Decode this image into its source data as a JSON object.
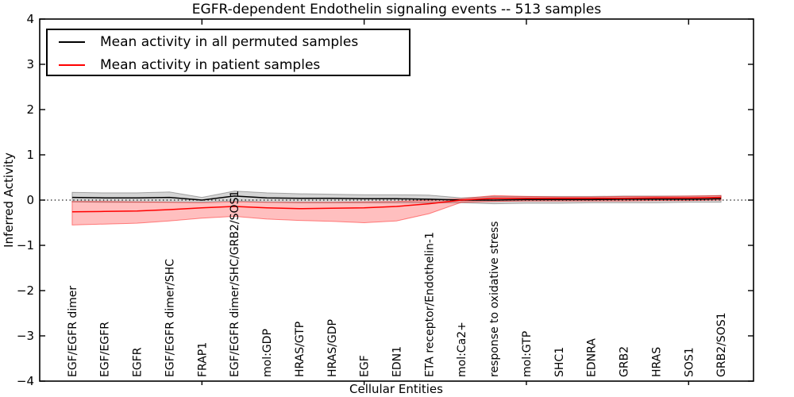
{
  "chart_data": {
    "type": "line",
    "title": "EGFR-dependent Endothelin signaling events -- 513 samples",
    "xlabel": "Cellular Entities",
    "ylabel": "Inferred Activity",
    "xlim": [
      -1,
      21
    ],
    "ylim": [
      -4,
      4
    ],
    "grid": false,
    "legend_position": "upper left",
    "zero_line": {
      "value": 0,
      "style": "dotted",
      "color": "#000000"
    },
    "ytick_values": [
      -4,
      -3,
      -2,
      -1,
      0,
      1,
      2,
      3,
      4
    ],
    "ytick_labels": [
      "−4",
      "−3",
      "−2",
      "−1",
      "0",
      "1",
      "2",
      "3",
      "4"
    ],
    "xtick_unlabeled_positions": [
      4,
      9,
      14,
      19
    ],
    "categories": [
      "EGF/EGFR dimer",
      "EGF/EGFR",
      "EGFR",
      "EGF/EGFR dimer/SHC",
      "FRAP1",
      "EGF/EGFR dimer/SHC/GRB2/SOS1",
      "mol:GDP",
      "HRAS/GTP",
      "HRAS/GDP",
      "EGF",
      "EDN1",
      "ETA receptor/Endothelin-1",
      "mol:Ca2+",
      "response to oxidative stress",
      "mol:GTP",
      "SHC1",
      "EDNRA",
      "GRB2",
      "HRAS",
      "SOS1",
      "GRB2/SOS1"
    ],
    "series": [
      {
        "name": "Mean activity in all permuted samples",
        "color": "#000000",
        "band_color": "rgba(0,0,0,0.17)",
        "band_edge_color": "rgba(0,0,0,0.30)",
        "values": [
          0.06,
          0.05,
          0.05,
          0.06,
          0.0,
          0.09,
          0.05,
          0.04,
          0.04,
          0.03,
          0.03,
          0.02,
          0.0,
          0.0,
          0.01,
          0.01,
          0.01,
          0.02,
          0.02,
          0.02,
          0.03
        ],
        "band_upper": [
          0.17,
          0.16,
          0.16,
          0.18,
          0.06,
          0.2,
          0.16,
          0.14,
          0.13,
          0.12,
          0.12,
          0.11,
          0.05,
          0.08,
          0.08,
          0.08,
          0.08,
          0.09,
          0.09,
          0.09,
          0.1
        ],
        "band_lower": [
          -0.04,
          -0.05,
          -0.05,
          -0.05,
          -0.05,
          -0.02,
          -0.05,
          -0.06,
          -0.06,
          -0.06,
          -0.06,
          -0.06,
          -0.06,
          -0.08,
          -0.07,
          -0.07,
          -0.06,
          -0.06,
          -0.06,
          -0.05,
          -0.05
        ]
      },
      {
        "name": "Mean activity in patient samples",
        "color": "#ff0000",
        "band_color": "rgba(255,0,0,0.25)",
        "band_edge_color": "rgba(255,0,0,0.45)",
        "values": [
          -0.26,
          -0.25,
          -0.24,
          -0.21,
          -0.17,
          -0.14,
          -0.17,
          -0.19,
          -0.18,
          -0.17,
          -0.14,
          -0.08,
          0.0,
          0.04,
          0.04,
          0.04,
          0.04,
          0.04,
          0.05,
          0.05,
          0.06
        ],
        "band_upper": [
          -0.03,
          -0.03,
          -0.04,
          -0.05,
          -0.06,
          -0.04,
          -0.05,
          -0.05,
          -0.05,
          -0.04,
          -0.03,
          0.0,
          0.03,
          0.1,
          0.08,
          0.07,
          0.07,
          0.08,
          0.08,
          0.09,
          0.1
        ],
        "band_lower": [
          -0.55,
          -0.53,
          -0.51,
          -0.46,
          -0.4,
          -0.36,
          -0.42,
          -0.45,
          -0.47,
          -0.5,
          -0.46,
          -0.3,
          -0.05,
          -0.03,
          -0.02,
          -0.02,
          -0.02,
          -0.02,
          -0.01,
          -0.01,
          0.0
        ]
      }
    ]
  }
}
